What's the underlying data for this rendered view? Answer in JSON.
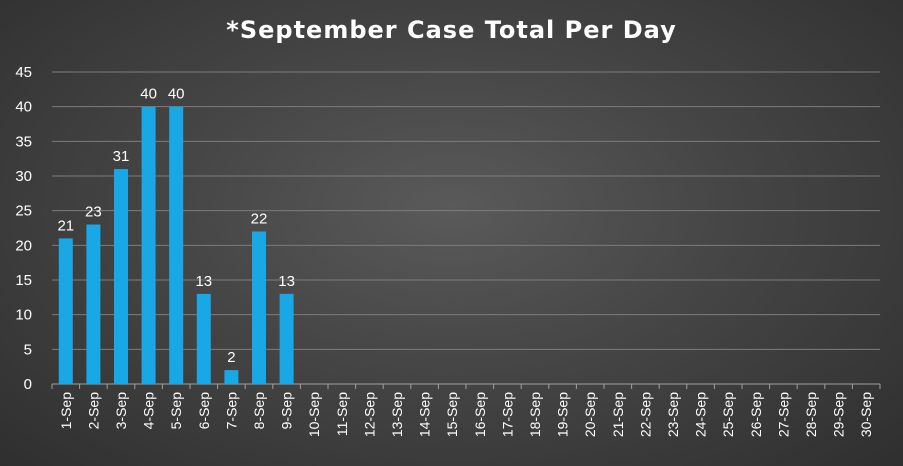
{
  "chart_data": {
    "type": "bar",
    "title": "*September Case Total Per Day",
    "xlabel": "",
    "ylabel": "",
    "ylim": [
      0,
      45
    ],
    "yticks": [
      0,
      5,
      10,
      15,
      20,
      25,
      30,
      35,
      40,
      45
    ],
    "grid": true,
    "bar_color": "#1aa7e6",
    "categories": [
      "1-Sep",
      "2-Sep",
      "3-Sep",
      "4-Sep",
      "5-Sep",
      "6-Sep",
      "7-Sep",
      "8-Sep",
      "9-Sep",
      "10-Sep",
      "11-Sep",
      "12-Sep",
      "13-Sep",
      "14-Sep",
      "15-Sep",
      "16-Sep",
      "17-Sep",
      "18-Sep",
      "19-Sep",
      "20-Sep",
      "21-Sep",
      "22-Sep",
      "23-Sep",
      "24-Sep",
      "25-Sep",
      "26-Sep",
      "27-Sep",
      "28-Sep",
      "29-Sep",
      "30-Sep"
    ],
    "values": [
      21,
      23,
      31,
      40,
      40,
      13,
      2,
      22,
      13,
      null,
      null,
      null,
      null,
      null,
      null,
      null,
      null,
      null,
      null,
      null,
      null,
      null,
      null,
      null,
      null,
      null,
      null,
      null,
      null,
      null
    ]
  }
}
